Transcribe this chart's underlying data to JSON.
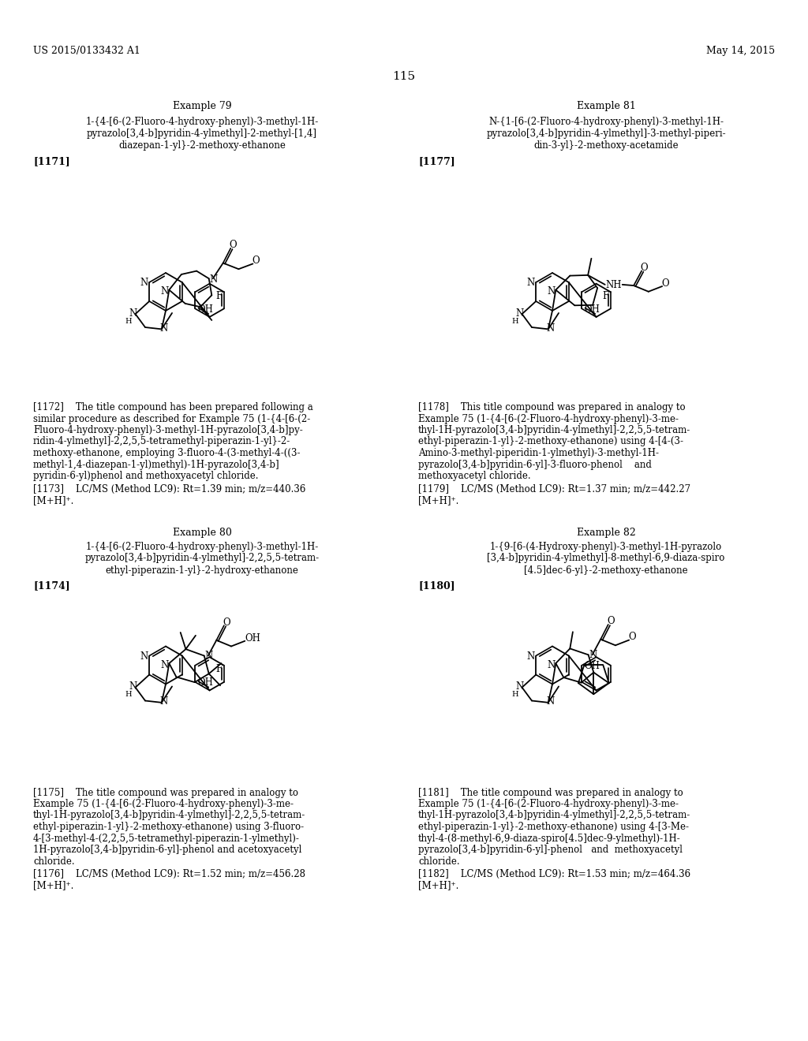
{
  "header_left": "US 2015/0133432 A1",
  "header_right": "May 14, 2015",
  "page_num": "115",
  "ex79_title": "Example 79",
  "ex79_name": [
    "1-{4-[6-(2-Fluoro-4-hydroxy-phenyl)-3-methyl-1H-",
    "pyrazolo[3,4-b]pyridin-4-ylmethyl]-2-methyl-[1,4]",
    "diazepan-1-yl}-2-methoxy-ethanone"
  ],
  "ex79_ref": "[1171]",
  "ex79_desc": [
    "[1172]    The title compound has been prepared following a",
    "similar procedure as described for Example 75 (1-{4-[6-(2-",
    "Fluoro-4-hydroxy-phenyl)-3-methyl-1H-pyrazolo[3,4-b]py-",
    "ridin-4-ylmethyl]-2,2,5,5-tetramethyl-piperazin-1-yl}-2-",
    "methoxy-ethanone, employing 3-fluoro-4-(3-methyl-4-((3-",
    "methyl-1,4-diazepan-1-yl)methyl)-1H-pyrazolo[3,4-b]",
    "pyridin-6-yl)phenol and methoxyacetyl chloride."
  ],
  "ex79_lcms": "[1173]    LC/MS (Method LC9): Rt=1.39 min; m/z=440.36",
  "ex79_lcms2": "[M+H]⁺.",
  "ex80_title": "Example 80",
  "ex80_name": [
    "1-{4-[6-(2-Fluoro-4-hydroxy-phenyl)-3-methyl-1H-",
    "pyrazolo[3,4-b]pyridin-4-ylmethyl]-2,2,5,5-tetram-",
    "ethyl-piperazin-1-yl}-2-hydroxy-ethanone"
  ],
  "ex80_ref": "[1174]",
  "ex80_desc": [
    "[1175]    The title compound was prepared in analogy to",
    "Example 75 (1-{4-[6-(2-Fluoro-4-hydroxy-phenyl)-3-me-",
    "thyl-1H-pyrazolo[3,4-b]pyridin-4-ylmethyl]-2,2,5,5-tetram-",
    "ethyl-piperazin-1-yl}-2-methoxy-ethanone) using 3-fluoro-",
    "4-[3-methyl-4-(2,2,5,5-tetramethyl-piperazin-1-ylmethyl)-",
    "1H-pyrazolo[3,4-b]pyridin-6-yl]-phenol and acetoxyacetyl",
    "chloride."
  ],
  "ex80_lcms": "[1176]    LC/MS (Method LC9): Rt=1.52 min; m/z=456.28",
  "ex80_lcms2": "[M+H]⁺.",
  "ex81_title": "Example 81",
  "ex81_name": [
    "N-{1-[6-(2-Fluoro-4-hydroxy-phenyl)-3-methyl-1H-",
    "pyrazolo[3,4-b]pyridin-4-ylmethyl]-3-methyl-piperi-",
    "din-3-yl}-2-methoxy-acetamide"
  ],
  "ex81_ref": "[1177]",
  "ex81_desc": [
    "[1178]    This title compound was prepared in analogy to",
    "Example 75 (1-{4-[6-(2-Fluoro-4-hydroxy-phenyl)-3-me-",
    "thyl-1H-pyrazolo[3,4-b]pyridin-4-ylmethyl]-2,2,5,5-tetram-",
    "ethyl-piperazin-1-yl}-2-methoxy-ethanone) using 4-[4-(3-",
    "Amino-3-methyl-piperidin-1-ylmethyl)-3-methyl-1H-",
    "pyrazolo[3,4-b]pyridin-6-yl]-3-fluoro-phenol    and",
    "methoxyacetyl chloride."
  ],
  "ex81_lcms": "[1179]    LC/MS (Method LC9): Rt=1.37 min; m/z=442.27",
  "ex81_lcms2": "[M+H]⁺.",
  "ex82_title": "Example 82",
  "ex82_name": [
    "1-{9-[6-(4-Hydroxy-phenyl)-3-methyl-1H-pyrazolo",
    "[3,4-b]pyridin-4-ylmethyl]-8-methyl-6,9-diaza-spiro",
    "[4.5]dec-6-yl}-2-methoxy-ethanone"
  ],
  "ex82_ref": "[1180]",
  "ex82_desc": [
    "[1181]    The title compound was prepared in analogy to",
    "Example 75 (1-{4-[6-(2-Fluoro-4-hydroxy-phenyl)-3-me-",
    "thyl-1H-pyrazolo[3,4-b]pyridin-4-ylmethyl]-2,2,5,5-tetram-",
    "ethyl-piperazin-1-yl}-2-methoxy-ethanone) using 4-[3-Me-",
    "thyl-4-(8-methyl-6,9-diaza-spiro[4.5]dec-9-ylmethyl)-1H-",
    "pyrazolo[3,4-b]pyridin-6-yl]-phenol   and  methoxyacetyl",
    "chloride."
  ],
  "ex82_lcms": "[1182]    LC/MS (Method LC9): Rt=1.53 min; m/z=464.36",
  "ex82_lcms2": "[M+H]⁺."
}
